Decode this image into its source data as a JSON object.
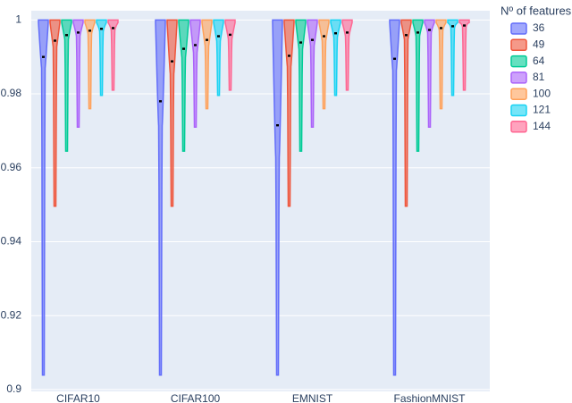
{
  "chart_data": {
    "type": "violin",
    "categories": [
      "CIFAR10",
      "CIFAR100",
      "EMNIST",
      "FashionMNIST"
    ],
    "legend_title": "Nº of features",
    "ylim": [
      0.8995,
      1.0025
    ],
    "yticks": [
      0.9,
      0.92,
      0.94,
      0.96,
      0.98,
      1
    ],
    "grid": true,
    "legend_position": "right",
    "series": [
      {
        "name": "36",
        "color": "#636efa",
        "min": [
          0.9039,
          0.9039,
          0.9039,
          0.9039
        ],
        "median": [
          0.99,
          0.978,
          0.9715,
          0.9895
        ],
        "max": [
          1,
          1,
          1,
          1
        ]
      },
      {
        "name": "49",
        "color": "#EF553B",
        "min": [
          0.9496,
          0.9496,
          0.9496,
          0.9496
        ],
        "median": [
          0.9944,
          0.9888,
          0.9903,
          0.9959
        ],
        "max": [
          1,
          1,
          1,
          1
        ]
      },
      {
        "name": "64",
        "color": "#00cc96",
        "min": [
          0.9645,
          0.9645,
          0.9645,
          0.9645
        ],
        "median": [
          0.9959,
          0.9922,
          0.9939,
          0.9966
        ],
        "max": [
          1,
          1,
          1,
          1
        ]
      },
      {
        "name": "81",
        "color": "#ab63fa",
        "min": [
          0.971,
          0.971,
          0.971,
          0.971
        ],
        "median": [
          0.9966,
          0.9932,
          0.9946,
          0.9973
        ],
        "max": [
          1,
          1,
          1,
          1
        ]
      },
      {
        "name": "100",
        "color": "#FFA15A",
        "min": [
          0.976,
          0.976,
          0.976,
          0.976
        ],
        "median": [
          0.9971,
          0.9946,
          0.9956,
          0.9978
        ],
        "max": [
          1,
          1,
          1,
          1
        ]
      },
      {
        "name": "121",
        "color": "#19d3f3",
        "min": [
          0.9796,
          0.9796,
          0.9796,
          0.9796
        ],
        "median": [
          0.9976,
          0.9956,
          0.9964,
          0.9983
        ],
        "max": [
          1,
          1,
          1,
          1
        ]
      },
      {
        "name": "144",
        "color": "#FF6692",
        "min": [
          0.981,
          0.981,
          0.981,
          0.981
        ],
        "median": [
          0.9978,
          0.996,
          0.9966,
          0.9985
        ],
        "max": [
          1,
          1,
          1,
          1
        ]
      }
    ]
  }
}
